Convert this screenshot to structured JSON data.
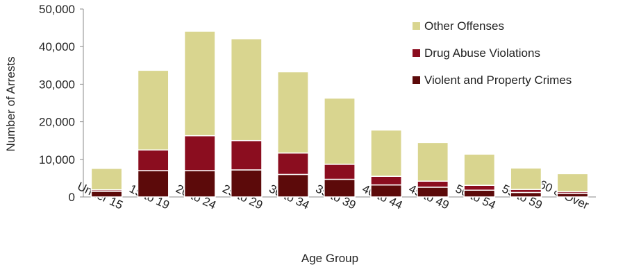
{
  "chart_data": {
    "type": "bar",
    "stacked": true,
    "title": "",
    "xlabel": "Age Group",
    "ylabel": "Number of Arrests",
    "ylim": [
      0,
      50000
    ],
    "yticks": [
      0,
      10000,
      20000,
      30000,
      40000,
      50000
    ],
    "ytick_labels": [
      "0",
      "10,000",
      "20,000",
      "30,000",
      "40,000",
      "50,000"
    ],
    "categories": [
      "Under 15",
      "15 to 19",
      "20 to 24",
      "25 to 29",
      "30 to 34",
      "35 to 39",
      "40 to 44",
      "45 to 49",
      "50 to 54",
      "55 to 59",
      "60 & Over"
    ],
    "series": [
      {
        "name": "Violent and Property Crimes",
        "color": "#5c0a0a",
        "values": [
          1500,
          7000,
          7000,
          7200,
          6000,
          4700,
          3200,
          2600,
          1800,
          1200,
          900
        ]
      },
      {
        "name": "Drug Abuse Violations",
        "color": "#8b0d1f",
        "values": [
          400,
          5500,
          9300,
          7800,
          5700,
          4000,
          2300,
          1600,
          1300,
          800,
          500
        ]
      },
      {
        "name": "Other Offenses",
        "color": "#d9d58f",
        "values": [
          5700,
          21200,
          27800,
          27100,
          21600,
          17600,
          12300,
          10300,
          8300,
          5700,
          4800
        ]
      }
    ],
    "legend": {
      "placement": "top-right",
      "order": [
        "Other Offenses",
        "Drug Abuse Violations",
        "Violent and Property Crimes"
      ]
    },
    "grid": false
  }
}
